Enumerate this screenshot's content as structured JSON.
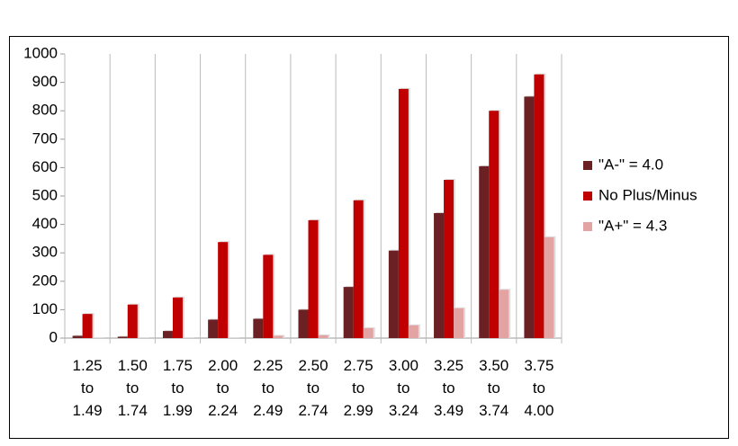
{
  "chart_data": {
    "type": "bar",
    "categories": [
      "1.25 to 1.49",
      "1.50 to 1.74",
      "1.75 to 1.99",
      "2.00 to 2.24",
      "2.25 to 2.49",
      "2.50 to 2.74",
      "2.75 to 2.99",
      "3.00 to 3.24",
      "3.25 to 3.49",
      "3.50 to 3.74",
      "3.75 to 4.00"
    ],
    "series": [
      {
        "name": "\"A-\" = 4.0",
        "color": "#6b2023",
        "values": [
          8,
          5,
          25,
          65,
          68,
          100,
          180,
          308,
          440,
          605,
          850
        ]
      },
      {
        "name": "No Plus/Minus",
        "color": "#c00000",
        "values": [
          85,
          118,
          143,
          338,
          293,
          415,
          485,
          877,
          557,
          800,
          928
        ]
      },
      {
        "name": "\"A+\" = 4.3",
        "color": "#e3a3a3",
        "values": [
          0,
          0,
          0,
          0,
          8,
          10,
          35,
          45,
          105,
          170,
          355
        ]
      }
    ],
    "ylim": [
      0,
      1000
    ],
    "yticks": [
      0,
      100,
      200,
      300,
      400,
      500,
      600,
      700,
      800,
      900,
      1000
    ],
    "legend": "right"
  }
}
